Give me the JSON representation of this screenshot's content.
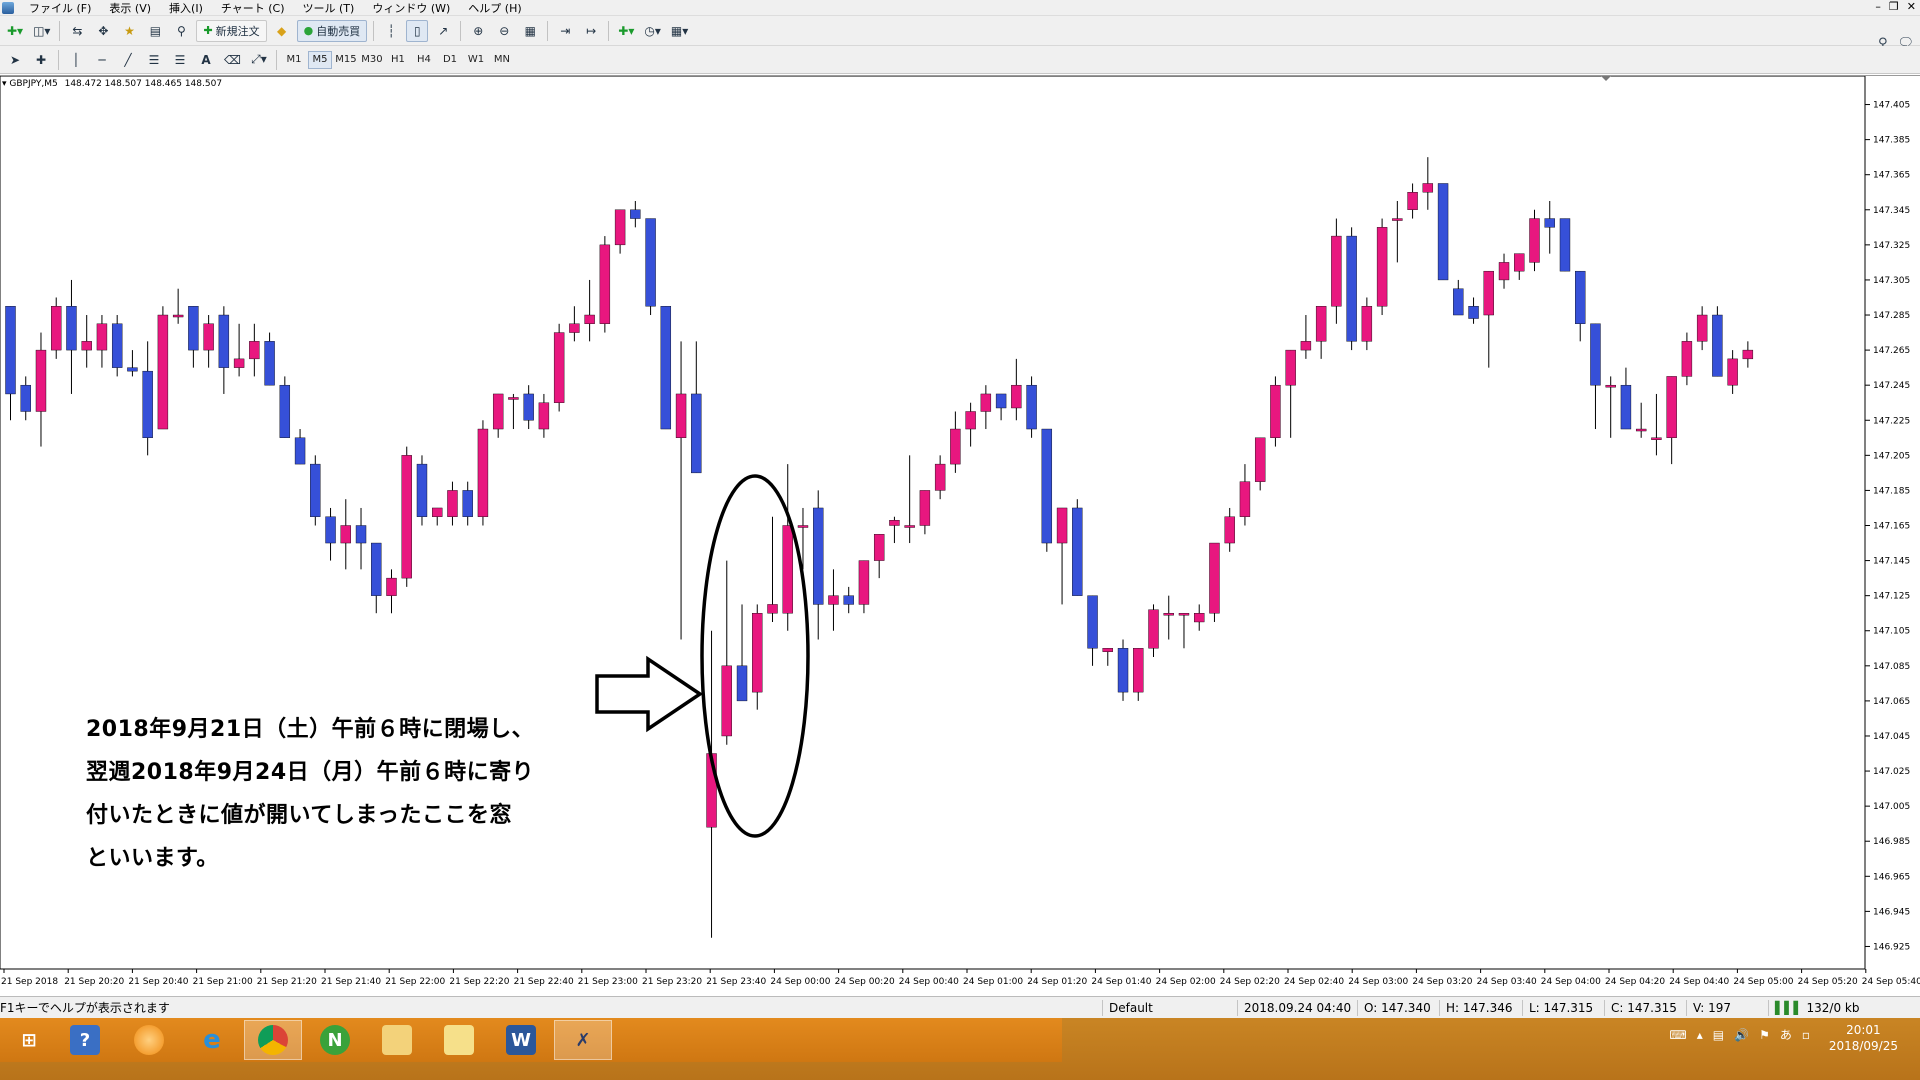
{
  "menu": {
    "items": [
      "ファイル (F)",
      "表示 (V)",
      "挿入(I)",
      "チャート (C)",
      "ツール (T)",
      "ウィンドウ (W)",
      "ヘルプ (H)"
    ]
  },
  "toolbar": {
    "new_order_label": "新規注文",
    "auto_trade_label": "自動売買",
    "timeframes": [
      "M1",
      "M5",
      "M15",
      "M30",
      "H1",
      "H4",
      "D1",
      "W1",
      "MN"
    ],
    "active_timeframe": "M5"
  },
  "chart_header": {
    "symbol": "GBPJPY,M5",
    "ohlc": "148.472 148.507 148.465 148.507"
  },
  "annotation": {
    "line1": "2018年9月21日（土）午前６時に閉場し、",
    "line2": "翌週2018年9月24日（月）午前６時に寄り",
    "line3": "付いたときに値が開いてしまったここを窓",
    "line4": "といいます。"
  },
  "statusbar": {
    "help": "F1キーでヘルプが表示されます",
    "profile": "Default",
    "datetime": "2018.09.24 04:40",
    "open": "O: 147.340",
    "high": "H: 147.346",
    "low": "L: 147.315",
    "close": "C: 147.315",
    "volume": "V: 197",
    "traffic": "132/0 kb"
  },
  "taskbar": {
    "time": "20:01",
    "date": "2018/09/25"
  },
  "colors": {
    "bull": "#e8177f",
    "bear": "#3650d8",
    "wick": "#000000",
    "background": "#ffffff"
  },
  "chart_data": {
    "type": "candlestick",
    "symbol": "GBPJPY",
    "timeframe": "M5",
    "ylim": [
      146.915,
      147.415
    ],
    "y_ticks": [
      "147.405",
      "147.385",
      "147.365",
      "147.345",
      "147.325",
      "147.305",
      "147.285",
      "147.265",
      "147.245",
      "147.225",
      "147.205",
      "147.185",
      "147.165",
      "147.145",
      "147.125",
      "147.105",
      "147.085",
      "147.065",
      "147.045",
      "147.025",
      "147.005",
      "146.985",
      "146.965",
      "146.945",
      "146.925"
    ],
    "x_labels": [
      "21 Sep 2018",
      "21 Sep 20:20",
      "21 Sep 20:40",
      "21 Sep 21:00",
      "21 Sep 21:20",
      "21 Sep 21:40",
      "21 Sep 22:00",
      "21 Sep 22:20",
      "21 Sep 22:40",
      "21 Sep 23:00",
      "21 Sep 23:20",
      "21 Sep 23:40",
      "24 Sep 00:00",
      "24 Sep 00:20",
      "24 Sep 00:40",
      "24 Sep 01:00",
      "24 Sep 01:20",
      "24 Sep 01:40",
      "24 Sep 02:00",
      "24 Sep 02:20",
      "24 Sep 02:40",
      "24 Sep 03:00",
      "24 Sep 03:20",
      "24 Sep 03:40",
      "24 Sep 04:00",
      "24 Sep 04:20",
      "24 Sep 04:40",
      "24 Sep 05:00",
      "24 Sep 05:20",
      "24 Sep 05:40"
    ],
    "candles": [
      {
        "o": 147.29,
        "h": 147.29,
        "l": 147.225,
        "c": 147.24
      },
      {
        "o": 147.245,
        "h": 147.25,
        "l": 147.225,
        "c": 147.23
      },
      {
        "o": 147.23,
        "h": 147.275,
        "l": 147.21,
        "c": 147.265
      },
      {
        "o": 147.265,
        "h": 147.295,
        "l": 147.26,
        "c": 147.29
      },
      {
        "o": 147.29,
        "h": 147.305,
        "l": 147.24,
        "c": 147.265
      },
      {
        "o": 147.265,
        "h": 147.285,
        "l": 147.255,
        "c": 147.27
      },
      {
        "o": 147.265,
        "h": 147.285,
        "l": 147.255,
        "c": 147.28
      },
      {
        "o": 147.28,
        "h": 147.285,
        "l": 147.25,
        "c": 147.255
      },
      {
        "o": 147.255,
        "h": 147.265,
        "l": 147.25,
        "c": 147.253
      },
      {
        "o": 147.253,
        "h": 147.27,
        "l": 147.205,
        "c": 147.215
      },
      {
        "o": 147.22,
        "h": 147.29,
        "l": 147.22,
        "c": 147.285
      },
      {
        "o": 147.285,
        "h": 147.3,
        "l": 147.28,
        "c": 147.285
      },
      {
        "o": 147.29,
        "h": 147.29,
        "l": 147.255,
        "c": 147.265
      },
      {
        "o": 147.265,
        "h": 147.285,
        "l": 147.255,
        "c": 147.28
      },
      {
        "o": 147.285,
        "h": 147.29,
        "l": 147.24,
        "c": 147.255
      },
      {
        "o": 147.255,
        "h": 147.28,
        "l": 147.25,
        "c": 147.26
      },
      {
        "o": 147.26,
        "h": 147.28,
        "l": 147.25,
        "c": 147.27
      },
      {
        "o": 147.27,
        "h": 147.275,
        "l": 147.245,
        "c": 147.245
      },
      {
        "o": 147.245,
        "h": 147.25,
        "l": 147.215,
        "c": 147.215
      },
      {
        "o": 147.215,
        "h": 147.22,
        "l": 147.2,
        "c": 147.2
      },
      {
        "o": 147.2,
        "h": 147.205,
        "l": 147.165,
        "c": 147.17
      },
      {
        "o": 147.17,
        "h": 147.175,
        "l": 147.145,
        "c": 147.155
      },
      {
        "o": 147.155,
        "h": 147.18,
        "l": 147.14,
        "c": 147.165
      },
      {
        "o": 147.165,
        "h": 147.175,
        "l": 147.14,
        "c": 147.155
      },
      {
        "o": 147.155,
        "h": 147.155,
        "l": 147.115,
        "c": 147.125
      },
      {
        "o": 147.125,
        "h": 147.14,
        "l": 147.115,
        "c": 147.135
      },
      {
        "o": 147.135,
        "h": 147.21,
        "l": 147.13,
        "c": 147.205
      },
      {
        "o": 147.2,
        "h": 147.205,
        "l": 147.165,
        "c": 147.17
      },
      {
        "o": 147.17,
        "h": 147.175,
        "l": 147.165,
        "c": 147.175
      },
      {
        "o": 147.17,
        "h": 147.19,
        "l": 147.165,
        "c": 147.185
      },
      {
        "o": 147.185,
        "h": 147.19,
        "l": 147.165,
        "c": 147.17
      },
      {
        "o": 147.17,
        "h": 147.225,
        "l": 147.165,
        "c": 147.22
      },
      {
        "o": 147.22,
        "h": 147.24,
        "l": 147.215,
        "c": 147.24
      },
      {
        "o": 147.238,
        "h": 147.24,
        "l": 147.22,
        "c": 147.238
      },
      {
        "o": 147.24,
        "h": 147.245,
        "l": 147.22,
        "c": 147.225
      },
      {
        "o": 147.22,
        "h": 147.24,
        "l": 147.215,
        "c": 147.235
      },
      {
        "o": 147.235,
        "h": 147.28,
        "l": 147.23,
        "c": 147.275
      },
      {
        "o": 147.275,
        "h": 147.29,
        "l": 147.27,
        "c": 147.28
      },
      {
        "o": 147.28,
        "h": 147.305,
        "l": 147.27,
        "c": 147.285
      },
      {
        "o": 147.28,
        "h": 147.33,
        "l": 147.275,
        "c": 147.325
      },
      {
        "o": 147.325,
        "h": 147.345,
        "l": 147.32,
        "c": 147.345
      },
      {
        "o": 147.345,
        "h": 147.35,
        "l": 147.335,
        "c": 147.34
      },
      {
        "o": 147.34,
        "h": 147.34,
        "l": 147.285,
        "c": 147.29
      },
      {
        "o": 147.29,
        "h": 147.29,
        "l": 147.22,
        "c": 147.22
      },
      {
        "o": 147.215,
        "h": 147.27,
        "l": 147.1,
        "c": 147.24
      },
      {
        "o": 147.24,
        "h": 147.27,
        "l": 147.195,
        "c": 147.195
      },
      {
        "o": 146.993,
        "h": 147.105,
        "l": 146.93,
        "c": 147.035
      },
      {
        "o": 147.045,
        "h": 147.145,
        "l": 147.04,
        "c": 147.085
      },
      {
        "o": 147.085,
        "h": 147.12,
        "l": 147.07,
        "c": 147.065
      },
      {
        "o": 147.07,
        "h": 147.12,
        "l": 147.06,
        "c": 147.115
      },
      {
        "o": 147.115,
        "h": 147.17,
        "l": 147.11,
        "c": 147.12
      },
      {
        "o": 147.115,
        "h": 147.2,
        "l": 147.105,
        "c": 147.165
      },
      {
        "o": 147.165,
        "h": 147.175,
        "l": 147.14,
        "c": 147.165
      },
      {
        "o": 147.175,
        "h": 147.185,
        "l": 147.1,
        "c": 147.12
      },
      {
        "o": 147.12,
        "h": 147.14,
        "l": 147.105,
        "c": 147.125
      },
      {
        "o": 147.125,
        "h": 147.13,
        "l": 147.115,
        "c": 147.12
      },
      {
        "o": 147.12,
        "h": 147.145,
        "l": 147.115,
        "c": 147.145
      },
      {
        "o": 147.145,
        "h": 147.16,
        "l": 147.135,
        "c": 147.16
      },
      {
        "o": 147.165,
        "h": 147.17,
        "l": 147.155,
        "c": 147.168
      },
      {
        "o": 147.165,
        "h": 147.205,
        "l": 147.155,
        "c": 147.165
      },
      {
        "o": 147.165,
        "h": 147.185,
        "l": 147.16,
        "c": 147.185
      },
      {
        "o": 147.185,
        "h": 147.205,
        "l": 147.18,
        "c": 147.2
      },
      {
        "o": 147.2,
        "h": 147.23,
        "l": 147.195,
        "c": 147.22
      },
      {
        "o": 147.22,
        "h": 147.235,
        "l": 147.21,
        "c": 147.23
      },
      {
        "o": 147.23,
        "h": 147.245,
        "l": 147.22,
        "c": 147.24
      },
      {
        "o": 147.24,
        "h": 147.24,
        "l": 147.225,
        "c": 147.232
      },
      {
        "o": 147.232,
        "h": 147.26,
        "l": 147.225,
        "c": 147.245
      },
      {
        "o": 147.245,
        "h": 147.25,
        "l": 147.215,
        "c": 147.22
      },
      {
        "o": 147.22,
        "h": 147.22,
        "l": 147.15,
        "c": 147.155
      },
      {
        "o": 147.155,
        "h": 147.175,
        "l": 147.12,
        "c": 147.175
      },
      {
        "o": 147.175,
        "h": 147.18,
        "l": 147.125,
        "c": 147.125
      },
      {
        "o": 147.125,
        "h": 147.125,
        "l": 147.085,
        "c": 147.095
      },
      {
        "o": 147.093,
        "h": 147.095,
        "l": 147.085,
        "c": 147.095
      },
      {
        "o": 147.095,
        "h": 147.1,
        "l": 147.065,
        "c": 147.07
      },
      {
        "o": 147.07,
        "h": 147.095,
        "l": 147.065,
        "c": 147.095
      },
      {
        "o": 147.095,
        "h": 147.12,
        "l": 147.09,
        "c": 147.117
      },
      {
        "o": 147.115,
        "h": 147.125,
        "l": 147.1,
        "c": 147.115
      },
      {
        "o": 147.115,
        "h": 147.115,
        "l": 147.095,
        "c": 147.115
      },
      {
        "o": 147.11,
        "h": 147.12,
        "l": 147.105,
        "c": 147.115
      },
      {
        "o": 147.115,
        "h": 147.15,
        "l": 147.11,
        "c": 147.155
      },
      {
        "o": 147.155,
        "h": 147.175,
        "l": 147.15,
        "c": 147.17
      },
      {
        "o": 147.17,
        "h": 147.2,
        "l": 147.165,
        "c": 147.19
      },
      {
        "o": 147.19,
        "h": 147.215,
        "l": 147.185,
        "c": 147.215
      },
      {
        "o": 147.215,
        "h": 147.25,
        "l": 147.21,
        "c": 147.245
      },
      {
        "o": 147.245,
        "h": 147.265,
        "l": 147.215,
        "c": 147.265
      },
      {
        "o": 147.265,
        "h": 147.285,
        "l": 147.26,
        "c": 147.27
      },
      {
        "o": 147.27,
        "h": 147.29,
        "l": 147.26,
        "c": 147.29
      },
      {
        "o": 147.29,
        "h": 147.34,
        "l": 147.28,
        "c": 147.33
      },
      {
        "o": 147.33,
        "h": 147.335,
        "l": 147.265,
        "c": 147.27
      },
      {
        "o": 147.27,
        "h": 147.295,
        "l": 147.265,
        "c": 147.29
      },
      {
        "o": 147.29,
        "h": 147.34,
        "l": 147.285,
        "c": 147.335
      },
      {
        "o": 147.34,
        "h": 147.35,
        "l": 147.315,
        "c": 147.34
      },
      {
        "o": 147.345,
        "h": 147.36,
        "l": 147.34,
        "c": 147.355
      },
      {
        "o": 147.355,
        "h": 147.375,
        "l": 147.345,
        "c": 147.36
      },
      {
        "o": 147.36,
        "h": 147.36,
        "l": 147.305,
        "c": 147.305
      },
      {
        "o": 147.3,
        "h": 147.305,
        "l": 147.285,
        "c": 147.285
      },
      {
        "o": 147.29,
        "h": 147.295,
        "l": 147.28,
        "c": 147.283
      },
      {
        "o": 147.285,
        "h": 147.31,
        "l": 147.255,
        "c": 147.31
      },
      {
        "o": 147.305,
        "h": 147.32,
        "l": 147.3,
        "c": 147.315
      },
      {
        "o": 147.31,
        "h": 147.32,
        "l": 147.305,
        "c": 147.32
      },
      {
        "o": 147.315,
        "h": 147.345,
        "l": 147.31,
        "c": 147.34
      },
      {
        "o": 147.34,
        "h": 147.35,
        "l": 147.32,
        "c": 147.335
      },
      {
        "o": 147.34,
        "h": 147.34,
        "l": 147.31,
        "c": 147.31
      },
      {
        "o": 147.31,
        "h": 147.31,
        "l": 147.27,
        "c": 147.28
      },
      {
        "o": 147.28,
        "h": 147.28,
        "l": 147.22,
        "c": 147.245
      },
      {
        "o": 147.245,
        "h": 147.25,
        "l": 147.215,
        "c": 147.245
      },
      {
        "o": 147.245,
        "h": 147.255,
        "l": 147.22,
        "c": 147.22
      },
      {
        "o": 147.22,
        "h": 147.235,
        "l": 147.215,
        "c": 147.22
      },
      {
        "o": 147.215,
        "h": 147.24,
        "l": 147.205,
        "c": 147.215
      },
      {
        "o": 147.215,
        "h": 147.25,
        "l": 147.2,
        "c": 147.25
      },
      {
        "o": 147.25,
        "h": 147.275,
        "l": 147.245,
        "c": 147.27
      },
      {
        "o": 147.27,
        "h": 147.29,
        "l": 147.265,
        "c": 147.285
      },
      {
        "o": 147.285,
        "h": 147.29,
        "l": 147.25,
        "c": 147.25
      },
      {
        "o": 147.245,
        "h": 147.265,
        "l": 147.24,
        "c": 147.26
      },
      {
        "o": 147.26,
        "h": 147.27,
        "l": 147.255,
        "c": 147.265
      }
    ]
  }
}
